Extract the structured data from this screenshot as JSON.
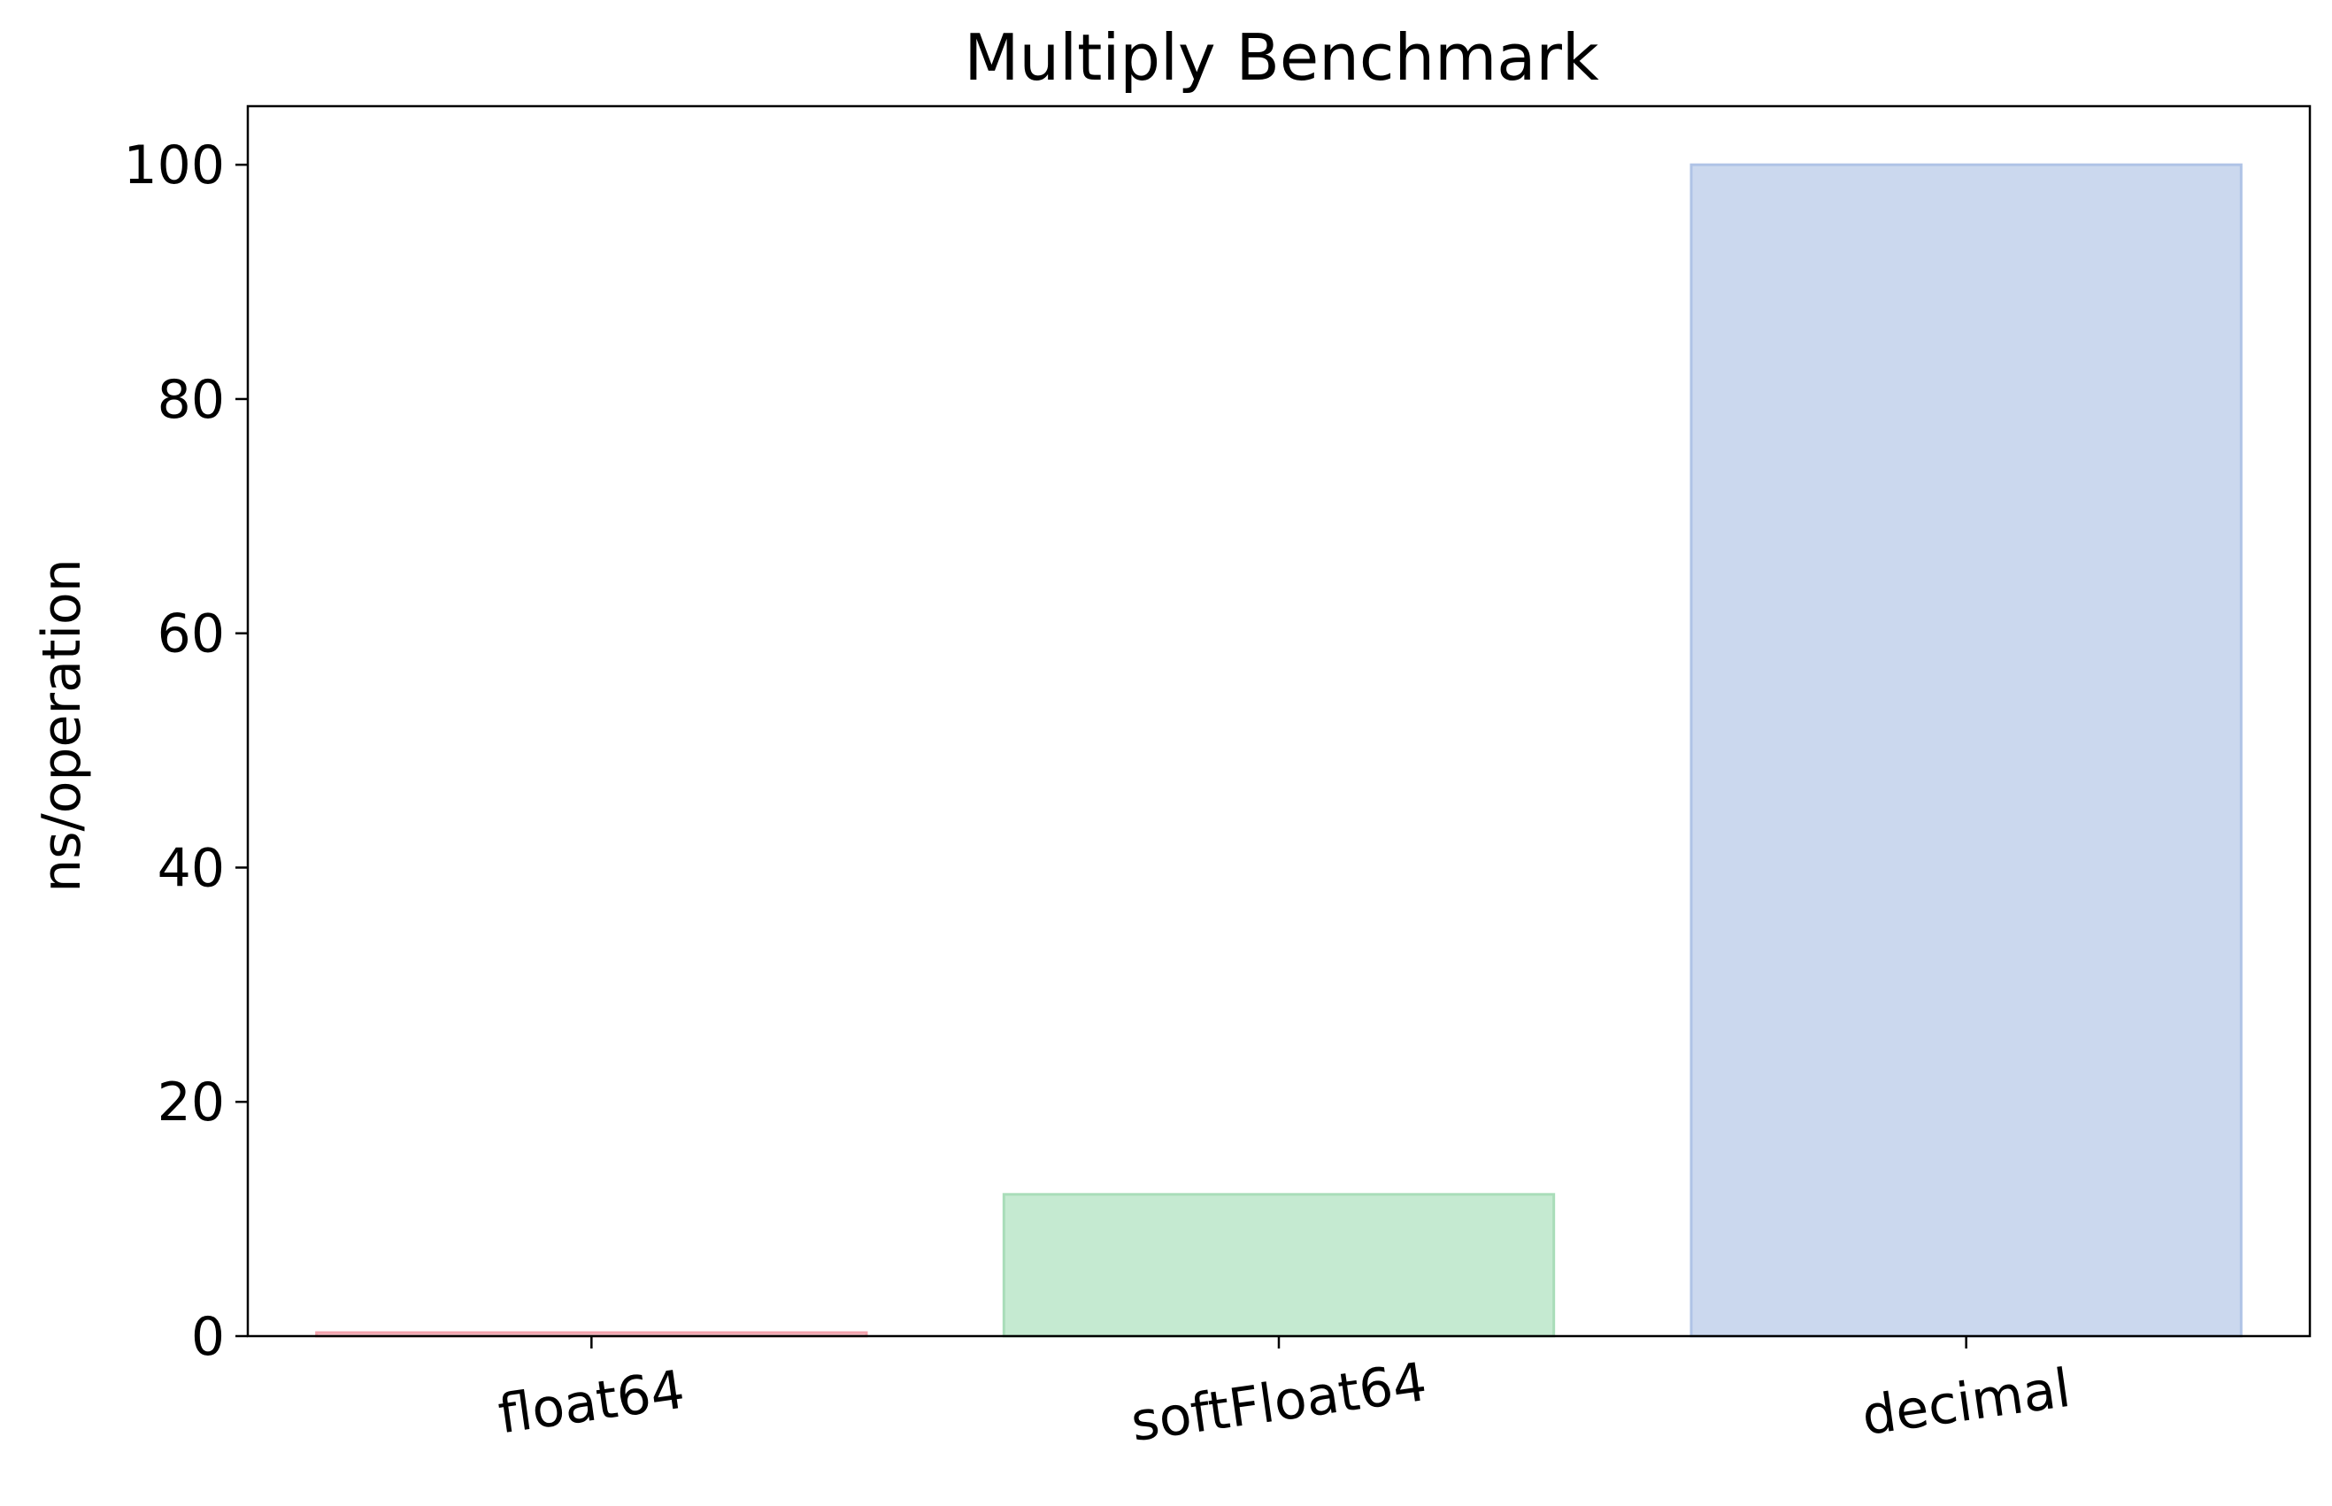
{
  "chart_data": {
    "type": "bar",
    "title": "Multiply Benchmark",
    "xlabel": "",
    "ylabel": "ns/operation",
    "categories": [
      "float64",
      "softFloat64",
      "decimal"
    ],
    "values": [
      0.3,
      12.1,
      100.0
    ],
    "ylim": [
      0,
      105
    ],
    "yticks": [
      0,
      20,
      40,
      60,
      80,
      100
    ],
    "grid": false,
    "legend": "none",
    "bar_fill_colors": [
      "#f4c6cc",
      "#c5ead1",
      "#cbd8ee"
    ],
    "bar_edge_colors": [
      "#f2a1ac",
      "#a9ddb9",
      "#afc3e6"
    ]
  }
}
